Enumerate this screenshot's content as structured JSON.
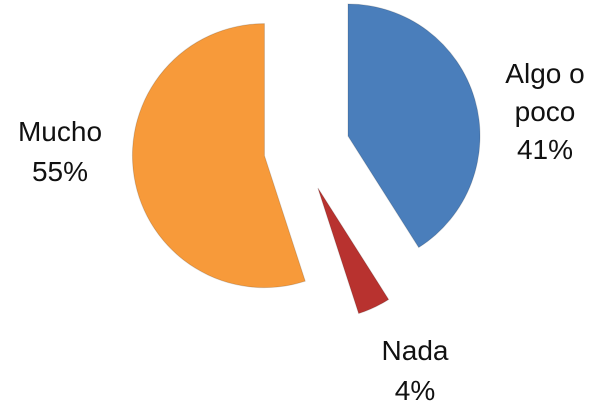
{
  "chart_data": {
    "type": "pie",
    "categories": [
      "Algo o poco",
      "Nada",
      "Mucho"
    ],
    "values": [
      41,
      4,
      55
    ],
    "value_labels": [
      "41%",
      "4%",
      "55%"
    ],
    "colors": [
      "#4a7ebb",
      "#b8322f",
      "#f79a3a"
    ]
  }
}
